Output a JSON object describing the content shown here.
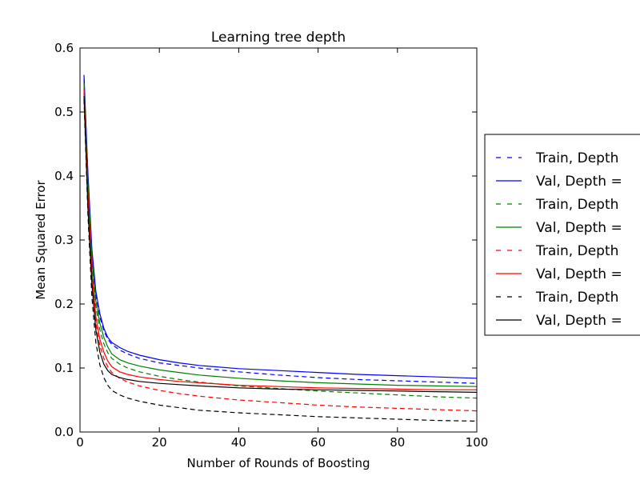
{
  "chart_data": {
    "type": "line",
    "title": "Learning tree depth",
    "xlabel": "Number of Rounds of Boosting",
    "ylabel": "Mean Squared Error",
    "xlim": [
      0,
      100
    ],
    "ylim": [
      0.0,
      0.6
    ],
    "xticks": [
      "0",
      "20",
      "40",
      "60",
      "80",
      "100"
    ],
    "yticks": [
      "0.0",
      "0.1",
      "0.2",
      "0.3",
      "0.4",
      "0.5",
      "0.6"
    ],
    "grid": false,
    "legend_position": "right, outside plot area (clipped)",
    "x": [
      1,
      2,
      3,
      4,
      5,
      6,
      7,
      8,
      10,
      12,
      15,
      20,
      25,
      30,
      40,
      50,
      60,
      70,
      80,
      90,
      100
    ],
    "series": [
      {
        "name": "Train, Depth",
        "color": "#0000ff",
        "dash": true,
        "values": [
          0.552,
          0.4,
          0.28,
          0.215,
          0.18,
          0.158,
          0.145,
          0.137,
          0.128,
          0.122,
          0.115,
          0.108,
          0.104,
          0.1,
          0.094,
          0.089,
          0.085,
          0.082,
          0.08,
          0.078,
          0.076
        ]
      },
      {
        "name": "Val, Depth =",
        "color": "#0000ff",
        "dash": false,
        "values": [
          0.558,
          0.405,
          0.285,
          0.22,
          0.185,
          0.162,
          0.148,
          0.14,
          0.132,
          0.126,
          0.12,
          0.113,
          0.108,
          0.104,
          0.099,
          0.096,
          0.093,
          0.09,
          0.088,
          0.086,
          0.084
        ]
      },
      {
        "name": "Train, Depth",
        "color": "#008000",
        "dash": true,
        "values": [
          0.538,
          0.38,
          0.26,
          0.195,
          0.16,
          0.138,
          0.124,
          0.115,
          0.106,
          0.1,
          0.094,
          0.087,
          0.082,
          0.078,
          0.072,
          0.068,
          0.064,
          0.061,
          0.058,
          0.055,
          0.053
        ]
      },
      {
        "name": "Val, Depth =",
        "color": "#008000",
        "dash": false,
        "values": [
          0.545,
          0.39,
          0.27,
          0.205,
          0.17,
          0.148,
          0.133,
          0.122,
          0.113,
          0.108,
          0.103,
          0.097,
          0.093,
          0.089,
          0.084,
          0.08,
          0.077,
          0.075,
          0.073,
          0.072,
          0.071
        ]
      },
      {
        "name": "Train, Depth",
        "color": "#ff0000",
        "dash": true,
        "values": [
          0.53,
          0.36,
          0.24,
          0.17,
          0.135,
          0.115,
          0.102,
          0.093,
          0.084,
          0.078,
          0.072,
          0.065,
          0.06,
          0.056,
          0.05,
          0.046,
          0.042,
          0.039,
          0.037,
          0.035,
          0.033
        ]
      },
      {
        "name": "Val, Depth =",
        "color": "#ff0000",
        "dash": false,
        "values": [
          0.535,
          0.37,
          0.25,
          0.18,
          0.145,
          0.125,
          0.111,
          0.102,
          0.094,
          0.09,
          0.086,
          0.082,
          0.079,
          0.077,
          0.073,
          0.071,
          0.069,
          0.068,
          0.067,
          0.066,
          0.066
        ]
      },
      {
        "name": "Train, Depth",
        "color": "#000000",
        "dash": true,
        "values": [
          0.52,
          0.34,
          0.21,
          0.14,
          0.105,
          0.085,
          0.073,
          0.065,
          0.058,
          0.053,
          0.048,
          0.042,
          0.038,
          0.034,
          0.03,
          0.027,
          0.024,
          0.022,
          0.02,
          0.018,
          0.017
        ]
      },
      {
        "name": "Val, Depth =",
        "color": "#000000",
        "dash": false,
        "values": [
          0.525,
          0.35,
          0.23,
          0.16,
          0.125,
          0.106,
          0.096,
          0.09,
          0.085,
          0.082,
          0.079,
          0.076,
          0.074,
          0.072,
          0.069,
          0.067,
          0.066,
          0.065,
          0.064,
          0.063,
          0.062
        ]
      }
    ]
  }
}
